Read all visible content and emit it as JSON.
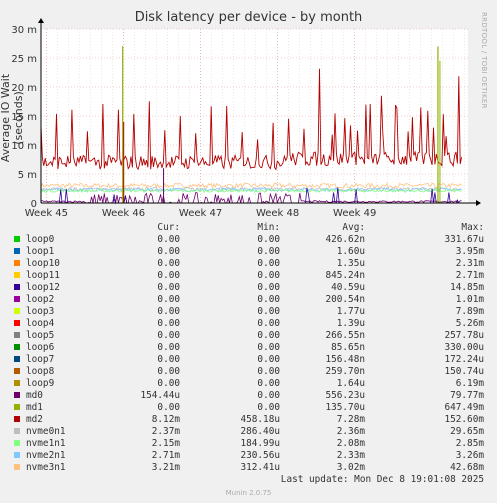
{
  "chart_data": {
    "type": "line",
    "title": "Disk latency per device - by month",
    "ylabel": "Average IO Wait (seconds)",
    "xlabel": "",
    "y_unit_scale": "m",
    "ylim": [
      0,
      30
    ],
    "y_ticks": [
      "0",
      "5 m",
      "10 m",
      "15 m",
      "20 m",
      "25 m",
      "30 m"
    ],
    "x_ticks": [
      "Week 45",
      "Week 46",
      "Week 47",
      "Week 48",
      "Week 49"
    ],
    "xlim": [
      44.93,
      50.47
    ],
    "grid": true,
    "legend_placement": "bottom",
    "series": [
      {
        "name": "loop0",
        "color": "#00cc00",
        "cur": "0.00",
        "min": "0.00",
        "avg": "426.62n",
        "max": "331.67u"
      },
      {
        "name": "loop1",
        "color": "#0066b3",
        "cur": "0.00",
        "min": "0.00",
        "avg": "1.60u",
        "max": "3.95m"
      },
      {
        "name": "loop10",
        "color": "#ff8000",
        "cur": "0.00",
        "min": "0.00",
        "avg": "1.35u",
        "max": "2.31m"
      },
      {
        "name": "loop11",
        "color": "#ffcc00",
        "cur": "0.00",
        "min": "0.00",
        "avg": "845.24n",
        "max": "2.71m"
      },
      {
        "name": "loop12",
        "color": "#330099",
        "cur": "0.00",
        "min": "0.00",
        "avg": "40.59u",
        "max": "14.85m"
      },
      {
        "name": "loop2",
        "color": "#990099",
        "cur": "0.00",
        "min": "0.00",
        "avg": "200.54n",
        "max": "1.01m"
      },
      {
        "name": "loop3",
        "color": "#ccff00",
        "cur": "0.00",
        "min": "0.00",
        "avg": "1.77u",
        "max": "7.89m"
      },
      {
        "name": "loop4",
        "color": "#ff0000",
        "cur": "0.00",
        "min": "0.00",
        "avg": "1.39u",
        "max": "5.26m"
      },
      {
        "name": "loop5",
        "color": "#808080",
        "cur": "0.00",
        "min": "0.00",
        "avg": "266.55n",
        "max": "257.78u"
      },
      {
        "name": "loop6",
        "color": "#008f00",
        "cur": "0.00",
        "min": "0.00",
        "avg": "85.65n",
        "max": "330.00u"
      },
      {
        "name": "loop7",
        "color": "#00487d",
        "cur": "0.00",
        "min": "0.00",
        "avg": "156.48n",
        "max": "172.24u"
      },
      {
        "name": "loop8",
        "color": "#b35a00",
        "cur": "0.00",
        "min": "0.00",
        "avg": "259.70n",
        "max": "150.74u"
      },
      {
        "name": "loop9",
        "color": "#b38f00",
        "cur": "0.00",
        "min": "0.00",
        "avg": "1.64u",
        "max": "6.19m"
      },
      {
        "name": "md0",
        "color": "#6b006b",
        "cur": "154.44u",
        "min": "0.00",
        "avg": "556.23u",
        "max": "79.77m"
      },
      {
        "name": "md1",
        "color": "#8fb300",
        "cur": "0.00",
        "min": "0.00",
        "avg": "135.70u",
        "max": "647.49m"
      },
      {
        "name": "md2",
        "color": "#b30000",
        "cur": "8.12m",
        "min": "458.18u",
        "avg": "7.28m",
        "max": "152.60m"
      },
      {
        "name": "nvme0n1",
        "color": "#bebebe",
        "cur": "2.37m",
        "min": "286.40u",
        "avg": "2.36m",
        "max": "29.65m"
      },
      {
        "name": "nvme1n1",
        "color": "#80ff80",
        "cur": "2.15m",
        "min": "184.99u",
        "avg": "2.08m",
        "max": "2.85m"
      },
      {
        "name": "nvme2n1",
        "color": "#80c9ff",
        "cur": "2.71m",
        "min": "230.56u",
        "avg": "2.33m",
        "max": "3.26m"
      },
      {
        "name": "nvme3n1",
        "color": "#ffc080",
        "cur": "3.21m",
        "min": "312.41u",
        "avg": "3.02m",
        "max": "42.68m"
      }
    ]
  },
  "legend_header": {
    "cur": "Cur:",
    "min": "Min:",
    "avg": "Avg:",
    "max": "Max:"
  },
  "last_update": "Last update: Mon Dec  8 19:01:08 2025",
  "watermark": "RRDTOOL / TOBI OETIKER",
  "generator": "Munin 2.0.75"
}
